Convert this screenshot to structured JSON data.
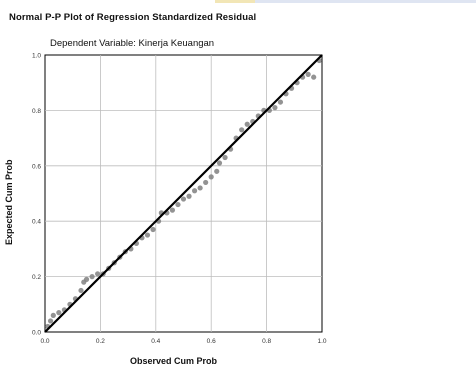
{
  "chart_data": {
    "type": "scatter",
    "title": "Normal P-P Plot of Regression Standardized Residual",
    "subtitle": "Dependent Variable: Kinerja Keuangan",
    "xlabel": "Observed Cum Prob",
    "ylabel": "Expected Cum Prob",
    "xlim": [
      0.0,
      1.0
    ],
    "ylim": [
      0.0,
      1.0
    ],
    "xticks": [
      "0.0",
      "0.2",
      "0.4",
      "0.6",
      "0.8",
      "1.0"
    ],
    "yticks": [
      "0.0",
      "0.2",
      "0.4",
      "0.6",
      "0.8",
      "1.0"
    ],
    "grid": true,
    "reference_line": {
      "x": [
        0.0,
        1.0
      ],
      "y": [
        0.0,
        1.0
      ]
    },
    "marker_color": "#808080",
    "line_color": "#000000",
    "points": [
      [
        0.01,
        0.02
      ],
      [
        0.02,
        0.04
      ],
      [
        0.03,
        0.06
      ],
      [
        0.05,
        0.07
      ],
      [
        0.07,
        0.08
      ],
      [
        0.09,
        0.1
      ],
      [
        0.11,
        0.12
      ],
      [
        0.13,
        0.15
      ],
      [
        0.14,
        0.18
      ],
      [
        0.15,
        0.19
      ],
      [
        0.17,
        0.2
      ],
      [
        0.19,
        0.21
      ],
      [
        0.21,
        0.21
      ],
      [
        0.23,
        0.23
      ],
      [
        0.25,
        0.25
      ],
      [
        0.27,
        0.27
      ],
      [
        0.29,
        0.29
      ],
      [
        0.31,
        0.3
      ],
      [
        0.33,
        0.32
      ],
      [
        0.35,
        0.34
      ],
      [
        0.37,
        0.35
      ],
      [
        0.39,
        0.37
      ],
      [
        0.41,
        0.4
      ],
      [
        0.42,
        0.43
      ],
      [
        0.44,
        0.43
      ],
      [
        0.46,
        0.44
      ],
      [
        0.48,
        0.46
      ],
      [
        0.5,
        0.48
      ],
      [
        0.52,
        0.49
      ],
      [
        0.54,
        0.51
      ],
      [
        0.56,
        0.52
      ],
      [
        0.58,
        0.54
      ],
      [
        0.6,
        0.56
      ],
      [
        0.62,
        0.58
      ],
      [
        0.63,
        0.61
      ],
      [
        0.65,
        0.63
      ],
      [
        0.67,
        0.66
      ],
      [
        0.69,
        0.7
      ],
      [
        0.71,
        0.73
      ],
      [
        0.73,
        0.75
      ],
      [
        0.75,
        0.76
      ],
      [
        0.77,
        0.78
      ],
      [
        0.79,
        0.8
      ],
      [
        0.81,
        0.8
      ],
      [
        0.83,
        0.81
      ],
      [
        0.85,
        0.83
      ],
      [
        0.87,
        0.86
      ],
      [
        0.89,
        0.88
      ],
      [
        0.91,
        0.9
      ],
      [
        0.93,
        0.92
      ],
      [
        0.95,
        0.93
      ],
      [
        0.97,
        0.92
      ],
      [
        0.99,
        0.98
      ]
    ]
  }
}
